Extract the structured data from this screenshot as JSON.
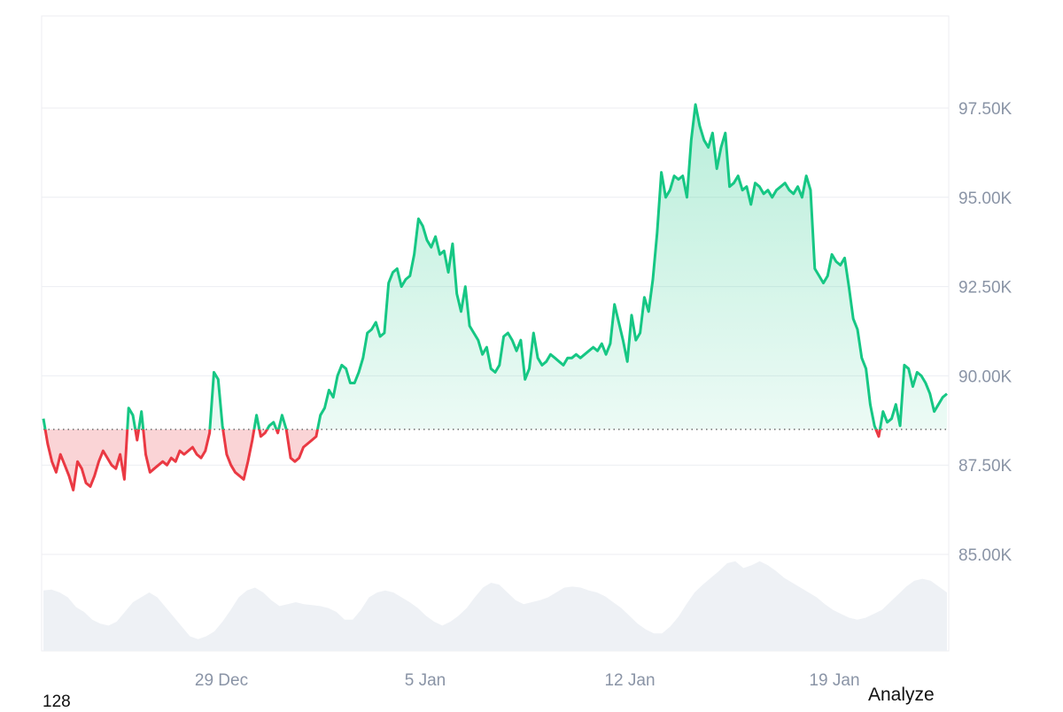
{
  "chart_data": {
    "type": "area",
    "title": "",
    "xlabel": "",
    "ylabel": "",
    "x_tick_labels": [
      "29 Dec",
      "5 Jan",
      "12 Jan",
      "19 Jan"
    ],
    "y_tick_labels": [
      "85.00K",
      "87.50K",
      "90.00K",
      "92.50K",
      "95.00K",
      "97.50K"
    ],
    "y_ticks": [
      85000,
      87500,
      90000,
      92500,
      95000,
      97500
    ],
    "ylim": [
      83000,
      100000
    ],
    "baseline": 88500,
    "grid": true,
    "colors": {
      "above": "#16c784",
      "below": "#ea3943",
      "volume": "#eef1f5",
      "grid": "#eceef2"
    },
    "price_series": {
      "values": [
        88800,
        88100,
        87600,
        87300,
        87800,
        87500,
        87200,
        86800,
        87600,
        87400,
        87000,
        86900,
        87200,
        87600,
        87900,
        87700,
        87500,
        87400,
        87800,
        87100,
        89100,
        88900,
        88200,
        89000,
        87800,
        87300,
        87400,
        87500,
        87600,
        87500,
        87700,
        87600,
        87900,
        87800,
        87900,
        88000,
        87800,
        87700,
        87900,
        88400,
        90100,
        89900,
        88600,
        87800,
        87500,
        87300,
        87200,
        87100,
        87600,
        88200,
        88900,
        88300,
        88400,
        88600,
        88700,
        88400,
        88900,
        88500,
        87700,
        87600,
        87700,
        88000,
        88100,
        88200,
        88300,
        88900,
        89100,
        89600,
        89400,
        90000,
        90300,
        90200,
        89800,
        89800,
        90100,
        90500,
        91200,
        91300,
        91500,
        91100,
        91200,
        92600,
        92900,
        93000,
        92500,
        92700,
        92800,
        93400,
        94400,
        94200,
        93800,
        93600,
        93900,
        93400,
        93500,
        92900,
        93700,
        92300,
        91800,
        92500,
        91400,
        91200,
        91000,
        90600,
        90800,
        90200,
        90100,
        90300,
        91100,
        91200,
        91000,
        90700,
        91000,
        89900,
        90200,
        91200,
        90500,
        90300,
        90400,
        90600,
        90500,
        90400,
        90300,
        90500,
        90500,
        90600,
        90500,
        90600,
        90700,
        90800,
        90700,
        90900,
        90600,
        90900,
        92000,
        91500,
        91000,
        90400,
        91700,
        91000,
        91200,
        92200,
        91800,
        92700,
        94000,
        95700,
        95000,
        95200,
        95600,
        95500,
        95600,
        95000,
        96600,
        97600,
        97000,
        96600,
        96400,
        96800,
        95800,
        96400,
        96800,
        95300,
        95400,
        95600,
        95200,
        95300,
        94800,
        95400,
        95300,
        95100,
        95200,
        95000,
        95200,
        95300,
        95400,
        95200,
        95100,
        95300,
        95000,
        95600,
        95200,
        93000,
        92800,
        92600,
        92800,
        93400,
        93200,
        93100,
        93300,
        92500,
        91600,
        91300,
        90500,
        90200,
        89200,
        88600,
        88300,
        89000,
        88700,
        88800,
        89200,
        88600,
        90300,
        90200,
        89700,
        90100,
        90000,
        89800,
        89500,
        89000,
        89200,
        89400,
        89500
      ]
    },
    "volume_series": {
      "values": [
        0.62,
        0.63,
        0.6,
        0.55,
        0.45,
        0.4,
        0.32,
        0.28,
        0.26,
        0.3,
        0.4,
        0.5,
        0.55,
        0.6,
        0.55,
        0.45,
        0.35,
        0.25,
        0.15,
        0.12,
        0.15,
        0.2,
        0.3,
        0.42,
        0.55,
        0.62,
        0.65,
        0.6,
        0.52,
        0.46,
        0.48,
        0.5,
        0.48,
        0.47,
        0.46,
        0.44,
        0.4,
        0.32,
        0.32,
        0.42,
        0.55,
        0.6,
        0.62,
        0.6,
        0.55,
        0.5,
        0.44,
        0.36,
        0.3,
        0.26,
        0.3,
        0.36,
        0.44,
        0.55,
        0.65,
        0.7,
        0.68,
        0.6,
        0.52,
        0.48,
        0.5,
        0.52,
        0.55,
        0.6,
        0.65,
        0.66,
        0.65,
        0.62,
        0.6,
        0.56,
        0.5,
        0.44,
        0.36,
        0.28,
        0.22,
        0.18,
        0.18,
        0.25,
        0.35,
        0.48,
        0.6,
        0.68,
        0.75,
        0.82,
        0.9,
        0.92,
        0.85,
        0.88,
        0.92,
        0.88,
        0.82,
        0.75,
        0.7,
        0.65,
        0.6,
        0.55,
        0.48,
        0.42,
        0.38,
        0.34,
        0.32,
        0.34,
        0.38,
        0.42,
        0.5,
        0.58,
        0.66,
        0.72,
        0.74,
        0.72,
        0.66,
        0.6
      ]
    }
  },
  "footer": {
    "left_text": "128",
    "action_label": "Analyze"
  }
}
